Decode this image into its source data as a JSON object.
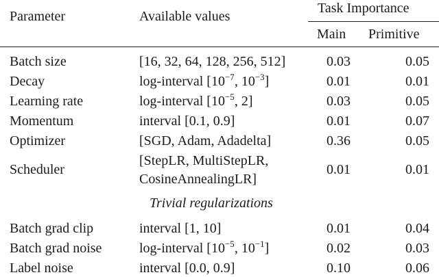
{
  "headers": {
    "parameter": "Parameter",
    "available_values": "Available values",
    "task_importance": "Task Importance",
    "main": "Main",
    "primitive": "Primitive"
  },
  "rows": [
    {
      "parameter": "Batch size",
      "values": "[16, 32, 64, 128, 256, 512]",
      "main": "0.03",
      "primitive": "0.05"
    },
    {
      "parameter": "Decay",
      "values_prefix": "log-interval [10",
      "exp1": "−7",
      "values_mid": ", 10",
      "exp2": "−3",
      "values_suffix": "]",
      "main": "0.01",
      "primitive": "0.01"
    },
    {
      "parameter": "Learning rate",
      "values_prefix": "log-interval [10",
      "exp1": "−5",
      "values_mid": ", 2]",
      "main": "0.03",
      "primitive": "0.05"
    },
    {
      "parameter": "Momentum",
      "values": "interval [0.1, 0.9]",
      "main": "0.01",
      "primitive": "0.07"
    },
    {
      "parameter": "Optimizer",
      "values": "[SGD, Adam, Adadelta]",
      "main": "0.36",
      "primitive": "0.05"
    },
    {
      "parameter": "Scheduler",
      "values_line1": "[StepLR, MultiStepLR,",
      "values_line2": "CosineAnnealingLR]",
      "main": "0.01",
      "primitive": "0.01"
    }
  ],
  "section_label": "Trivial regularizations",
  "rows2": [
    {
      "parameter": "Batch grad clip",
      "values": "interval [1, 10]",
      "main": "0.01",
      "primitive": "0.04"
    },
    {
      "parameter": "Batch grad noise",
      "values_prefix": "log-interval [10",
      "exp1": "−5",
      "values_mid": ", 10",
      "exp2": "−1",
      "values_suffix": "]",
      "main": "0.02",
      "primitive": "0.03"
    },
    {
      "parameter": "Label noise",
      "values": "interval [0.0, 0.9]",
      "main": "0.10",
      "primitive": "0.06"
    }
  ]
}
